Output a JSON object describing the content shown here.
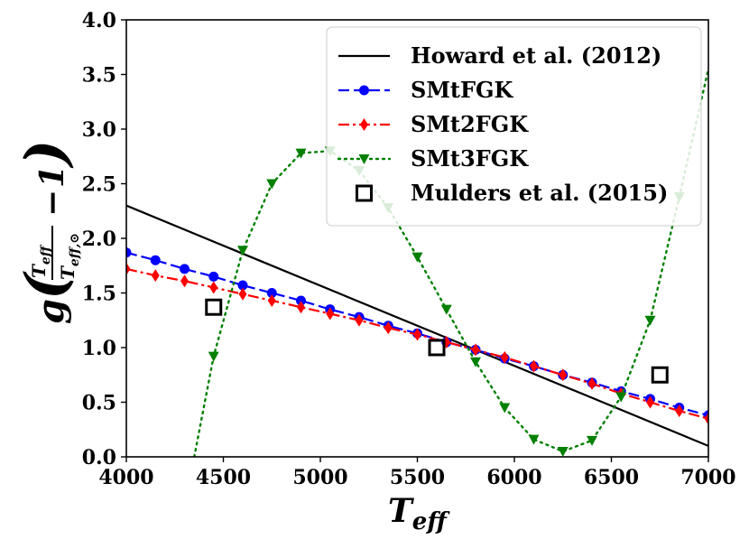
{
  "chart_data": {
    "type": "line",
    "xlabel": "T_eff",
    "ylabel": "g(T_eff / T_eff,⊙ − 1)",
    "xlim": [
      4000,
      7000
    ],
    "ylim": [
      0.0,
      4.0
    ],
    "xticks": [
      "4000",
      "4500",
      "5000",
      "5500",
      "6000",
      "6500",
      "7000"
    ],
    "yticks": [
      "0.0",
      "0.5",
      "1.0",
      "1.5",
      "2.0",
      "2.5",
      "3.0",
      "3.5",
      "4.0"
    ],
    "legend_position": "top-right",
    "series": [
      {
        "name": "Howard et al. (2012)",
        "style": "solid",
        "color": "#000000",
        "marker": "none",
        "x": [
          4000,
          7000
        ],
        "y": [
          2.3,
          0.1
        ]
      },
      {
        "name": "SMtFGK",
        "style": "dashed",
        "color": "#0000ff",
        "marker": "circle",
        "x": [
          4000,
          4150,
          4300,
          4450,
          4600,
          4750,
          4900,
          5050,
          5200,
          5350,
          5500,
          5650,
          5800,
          5950,
          6100,
          6250,
          6400,
          6550,
          6700,
          6850,
          7000
        ],
        "y": [
          1.87,
          1.8,
          1.72,
          1.65,
          1.57,
          1.5,
          1.43,
          1.35,
          1.28,
          1.2,
          1.13,
          1.05,
          0.98,
          0.9,
          0.83,
          0.75,
          0.68,
          0.6,
          0.53,
          0.45,
          0.38
        ]
      },
      {
        "name": "SMt2FGK",
        "style": "dashdot",
        "color": "#ff0000",
        "marker": "diamond",
        "x": [
          4000,
          4150,
          4300,
          4450,
          4600,
          4750,
          4900,
          5050,
          5200,
          5350,
          5500,
          5650,
          5800,
          5950,
          6100,
          6250,
          6400,
          6550,
          6700,
          6850,
          7000
        ],
        "y": [
          1.72,
          1.66,
          1.61,
          1.55,
          1.49,
          1.43,
          1.37,
          1.31,
          1.25,
          1.18,
          1.12,
          1.05,
          0.98,
          0.91,
          0.83,
          0.75,
          0.67,
          0.58,
          0.5,
          0.42,
          0.35
        ]
      },
      {
        "name": "SMt3FGK",
        "style": "dotted",
        "color": "#008000",
        "marker": "triangle-down",
        "x": [
          4350,
          4450,
          4600,
          4750,
          4900,
          5050,
          5200,
          5350,
          5500,
          5650,
          5800,
          5950,
          6100,
          6250,
          6400,
          6550,
          6700,
          6850,
          7000
        ],
        "y": [
          0.0,
          0.92,
          1.89,
          2.5,
          2.78,
          2.8,
          2.62,
          2.28,
          1.83,
          1.35,
          0.87,
          0.45,
          0.16,
          0.05,
          0.15,
          0.55,
          1.25,
          2.38,
          3.55
        ],
        "marker_x": [
          4450,
          4600,
          4750,
          4900,
          5050,
          5200,
          5350,
          5500,
          5650,
          5800,
          5950,
          6100,
          6250,
          6400,
          6550,
          6700,
          6850
        ],
        "marker_y": [
          0.92,
          1.89,
          2.5,
          2.78,
          2.8,
          2.62,
          2.28,
          1.83,
          1.35,
          0.87,
          0.45,
          0.16,
          0.05,
          0.15,
          0.55,
          1.25,
          2.38
        ]
      },
      {
        "name": "Mulders et al. (2015)",
        "style": "none",
        "color": "#000000",
        "marker": "square-open",
        "x": [
          4450,
          5600,
          6750
        ],
        "y": [
          1.37,
          1.0,
          0.75
        ]
      }
    ]
  }
}
